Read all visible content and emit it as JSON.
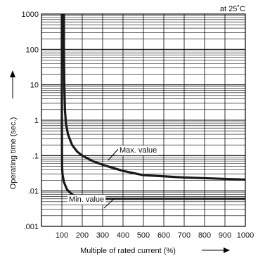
{
  "chart_data": {
    "type": "line",
    "note": "at 25˚C",
    "xlabel": "Multiple of rated current (%)",
    "ylabel": "Operating time (sec.)",
    "xscale": "linear",
    "yscale": "log",
    "xlim": [
      0,
      1000
    ],
    "ylim": [
      0.001,
      1000
    ],
    "xticks": [
      100,
      200,
      300,
      400,
      500,
      600,
      700,
      800,
      900,
      1000
    ],
    "xtick_labels": [
      "100",
      "200",
      "300",
      "400",
      "500",
      "600",
      "700",
      "800",
      "900",
      "1000"
    ],
    "yticks": [
      0.001,
      0.01,
      0.1,
      1,
      10,
      100,
      1000
    ],
    "ytick_labels": [
      ".001",
      ".01",
      ".1",
      "1",
      "10",
      "100",
      "1000"
    ],
    "grid": true,
    "series": [
      {
        "name": "Max. value",
        "x": [
          110,
          110,
          112,
          115,
          120,
          130,
          150,
          175,
          200,
          250,
          300,
          350,
          400,
          450,
          500,
          600,
          700,
          800,
          900,
          1000
        ],
        "y": [
          1000,
          100,
          10,
          2,
          0.8,
          0.4,
          0.2,
          0.13,
          0.1,
          0.07,
          0.055,
          0.045,
          0.037,
          0.032,
          0.028,
          0.026,
          0.024,
          0.023,
          0.022,
          0.021
        ]
      },
      {
        "name": "Min. value",
        "x": [
          100,
          100,
          100,
          101,
          103,
          110,
          125,
          150,
          175,
          200,
          250,
          300,
          400,
          500,
          600,
          700,
          800,
          900,
          1000
        ],
        "y": [
          1000,
          100,
          1,
          0.05,
          0.03,
          0.018,
          0.011,
          0.008,
          0.007,
          0.0065,
          0.006,
          0.006,
          0.006,
          0.006,
          0.006,
          0.006,
          0.006,
          0.006,
          0.006
        ]
      }
    ]
  }
}
